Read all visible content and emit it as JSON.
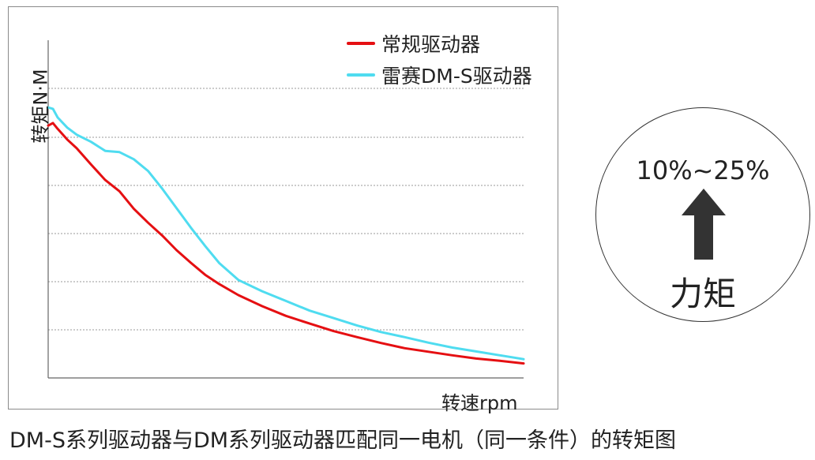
{
  "chart_data": {
    "type": "line",
    "title": "",
    "xlabel": "转速rpm",
    "ylabel": "转矩N·M",
    "grid": {
      "horizontal": true,
      "style": "dotted",
      "vertical": false
    },
    "legend_position": "top-right",
    "x": [
      0.0,
      0.01,
      0.02,
      0.04,
      0.06,
      0.09,
      0.12,
      0.15,
      0.18,
      0.21,
      0.24,
      0.27,
      0.3,
      0.33,
      0.36,
      0.4,
      0.45,
      0.5,
      0.55,
      0.6,
      0.65,
      0.7,
      0.75,
      0.8,
      0.85,
      0.9,
      0.95,
      1.0
    ],
    "xlim": [
      0,
      1
    ],
    "ylim": [
      0,
      1
    ],
    "series": [
      {
        "name": "常规驱动器",
        "color": "#e50f12",
        "values": [
          0.78,
          0.788,
          0.77,
          0.737,
          0.71,
          0.66,
          0.612,
          0.577,
          0.523,
          0.48,
          0.44,
          0.395,
          0.356,
          0.319,
          0.29,
          0.256,
          0.222,
          0.192,
          0.168,
          0.145,
          0.126,
          0.108,
          0.092,
          0.081,
          0.07,
          0.06,
          0.053,
          0.045
        ]
      },
      {
        "name": "雷赛DM-S驱动器",
        "color": "#4fdcf0",
        "values": [
          0.836,
          0.832,
          0.805,
          0.774,
          0.752,
          0.73,
          0.702,
          0.698,
          0.676,
          0.64,
          0.585,
          0.525,
          0.465,
          0.408,
          0.355,
          0.303,
          0.268,
          0.238,
          0.208,
          0.185,
          0.162,
          0.142,
          0.126,
          0.109,
          0.094,
          0.082,
          0.07,
          0.058
        ]
      }
    ]
  },
  "caption": "DM-S系列驱动器与DM系列驱动器匹配同一电机（同一条件）的转矩图",
  "badge": {
    "percent_text": "10%~25%",
    "label": "力矩",
    "arrow_icon": "up-arrow-icon"
  }
}
